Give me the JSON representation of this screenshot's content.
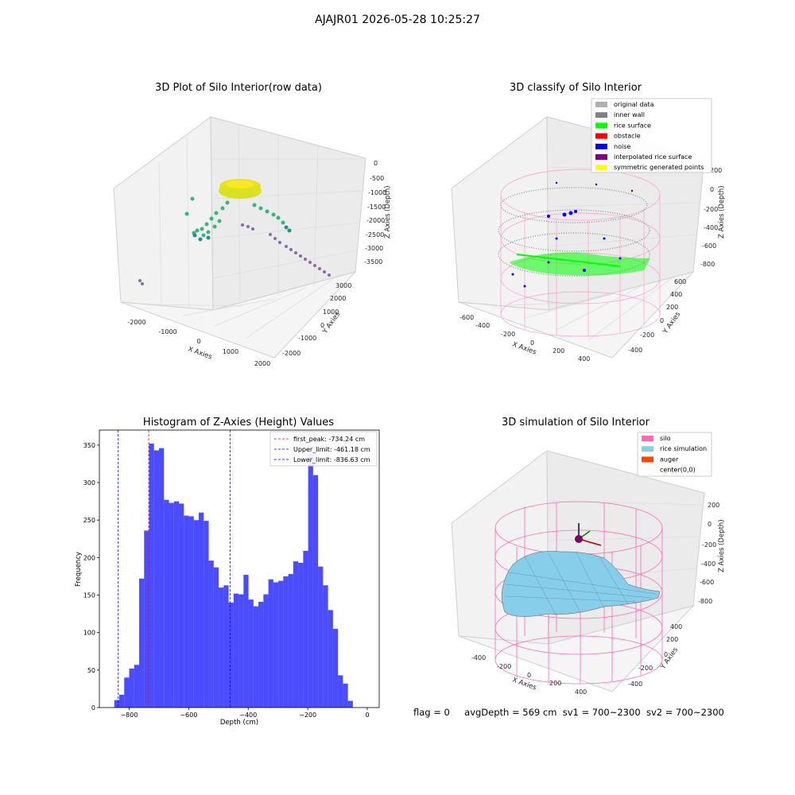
{
  "suptitle": "AJAJR01 2026-05-28 10:25:27",
  "panel1": {
    "title": "3D Plot of Silo Interior(row data)",
    "x_label": "X Axies",
    "y_label": "Y Axies",
    "z_label": "Z Axies (Depth)",
    "x_ticks": [
      "-2000",
      "-1000",
      "0",
      "1000",
      "2000"
    ],
    "y_ticks": [
      "-2000",
      "-1000",
      "0",
      "1000",
      "2000",
      "3000"
    ],
    "z_ticks": [
      "0",
      "-500",
      "-1000",
      "-1500",
      "-2000",
      "-2500",
      "-3000",
      "-3500"
    ]
  },
  "panel2": {
    "title": "3D classify of Silo Interior",
    "x_label": "X Axies",
    "y_label": "Y Axies",
    "z_label": "Z Axies (Depth)",
    "x_ticks": [
      "-600",
      "-400",
      "-200",
      "0",
      "200",
      "400"
    ],
    "y_ticks": [
      "-400",
      "-200",
      "0",
      "200",
      "400",
      "600"
    ],
    "z_ticks": [
      "200",
      "0",
      "-200",
      "-400",
      "-600",
      "-800"
    ],
    "legend": [
      {
        "label": "original data",
        "color": "#b0b0b0"
      },
      {
        "label": "inner wall",
        "color": "#808080"
      },
      {
        "label": "rice surface",
        "color": "#00ff00"
      },
      {
        "label": "obstacle",
        "color": "#ff0000"
      },
      {
        "label": "noise",
        "color": "#0000ff"
      },
      {
        "label": "interpolated rice surface",
        "color": "#800080"
      },
      {
        "label": "symmetric generated points",
        "color": "#ffff00"
      }
    ]
  },
  "panel4": {
    "title": "3D simulation of Silo Interior",
    "x_label": "X Axies",
    "y_label": "Y Axies",
    "z_label": "Z Axies (Depth)",
    "x_ticks": [
      "-400",
      "-200",
      "0",
      "200",
      "400"
    ],
    "y_ticks": [
      "-400",
      "-200",
      "0",
      "200",
      "400"
    ],
    "z_ticks": [
      "200",
      "0",
      "-200",
      "-400",
      "-600",
      "-800"
    ],
    "legend": [
      {
        "label": "silo",
        "color": "#ff69b4"
      },
      {
        "label": "rice simulation",
        "color": "#87ceeb"
      },
      {
        "label": "auger",
        "color": "#ff4500"
      },
      {
        "label": "center(0,0)",
        "color": ""
      }
    ]
  },
  "footer": {
    "flag": "flag = 0",
    "avg_depth": "avgDepth = 569 cm",
    "sv1": "sv1 = 700~2300",
    "sv2": "sv2 = 700~2300"
  },
  "chart_data": {
    "type": "bar",
    "title": "Histogram of Z-Axies (Height) Values",
    "xlabel": "Depth (cm)",
    "ylabel": "Frequency",
    "bar_color": "#0000ff",
    "xlim": [
      -900,
      40
    ],
    "ylim": [
      0,
      370
    ],
    "x_ticks": [
      -800,
      -600,
      -400,
      -200,
      0
    ],
    "y_ticks": [
      0,
      50,
      100,
      150,
      200,
      250,
      300,
      350
    ],
    "bin_start": -850,
    "bin_width": 16.7,
    "values": [
      10,
      17,
      40,
      52,
      57,
      172,
      236,
      352,
      343,
      346,
      277,
      273,
      275,
      272,
      256,
      255,
      250,
      260,
      249,
      196,
      187,
      160,
      163,
      140,
      152,
      151,
      177,
      144,
      135,
      141,
      151,
      171,
      167,
      169,
      175,
      178,
      195,
      193,
      209,
      338,
      310,
      188,
      163,
      130,
      105,
      43,
      32,
      9
    ],
    "vlines": [
      {
        "label": "first_peak: -734.24 cm",
        "x": -734.24,
        "color": "#ff0000"
      },
      {
        "label": "Upper_limit: -461.18 cm",
        "x": -461.18,
        "color": "#0000ff"
      },
      {
        "label": "Lower_limit: -836.63 cm",
        "x": -836.63,
        "color": "#0000ff"
      }
    ]
  }
}
